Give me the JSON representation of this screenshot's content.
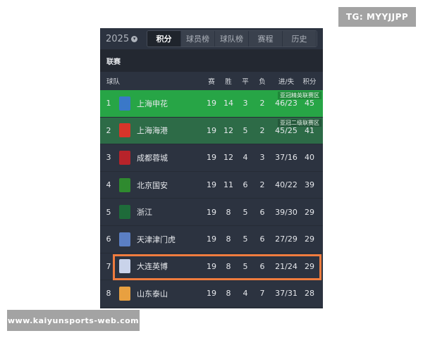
{
  "watermarks": {
    "top_right": "TG: MYYJJPP",
    "bottom_left": "www.kaiyunsports-web.com"
  },
  "header": {
    "season": "2025",
    "tabs": [
      {
        "label": "积分",
        "active": true
      },
      {
        "label": "球员榜"
      },
      {
        "label": "球队榜"
      },
      {
        "label": "赛程"
      },
      {
        "label": "历史"
      }
    ]
  },
  "section": "联赛",
  "columns": {
    "team": "球队",
    "played": "赛",
    "won": "胜",
    "drawn": "平",
    "lost": "负",
    "goals": "进/失",
    "points": "积分"
  },
  "rows": [
    {
      "rank": "1",
      "team": "上海申花",
      "p": "19",
      "w": "14",
      "d": "3",
      "l": "2",
      "g": "46/23",
      "pts": "45",
      "zone": "亚冠精英联赛区",
      "bg": "#27a546",
      "logo": "#3a78c8"
    },
    {
      "rank": "2",
      "team": "上海海港",
      "p": "19",
      "w": "12",
      "d": "5",
      "l": "2",
      "g": "45/25",
      "pts": "41",
      "zone": "亚冠二级联赛区",
      "bg": "#2d6b47",
      "logo": "#d8352a"
    },
    {
      "rank": "3",
      "team": "成都蓉城",
      "p": "19",
      "w": "12",
      "d": "4",
      "l": "3",
      "g": "37/16",
      "pts": "40",
      "logo": "#b8232a"
    },
    {
      "rank": "4",
      "team": "北京国安",
      "p": "19",
      "w": "11",
      "d": "6",
      "l": "2",
      "g": "40/22",
      "pts": "39",
      "logo": "#2f8a2f"
    },
    {
      "rank": "5",
      "team": "浙江",
      "p": "19",
      "w": "8",
      "d": "5",
      "l": "6",
      "g": "39/30",
      "pts": "29",
      "logo": "#1e6b3a"
    },
    {
      "rank": "6",
      "team": "天津津门虎",
      "p": "19",
      "w": "8",
      "d": "5",
      "l": "6",
      "g": "27/29",
      "pts": "29",
      "logo": "#5b7fc4"
    },
    {
      "rank": "7",
      "team": "大连英博",
      "p": "19",
      "w": "8",
      "d": "5",
      "l": "6",
      "g": "21/24",
      "pts": "29",
      "logo": "#c9d3ea",
      "highlighted": true,
      "highlight_color": "#f07c3e"
    },
    {
      "rank": "8",
      "team": "山东泰山",
      "p": "19",
      "w": "8",
      "d": "4",
      "l": "7",
      "g": "37/31",
      "pts": "28",
      "logo": "#e8a040"
    }
  ]
}
